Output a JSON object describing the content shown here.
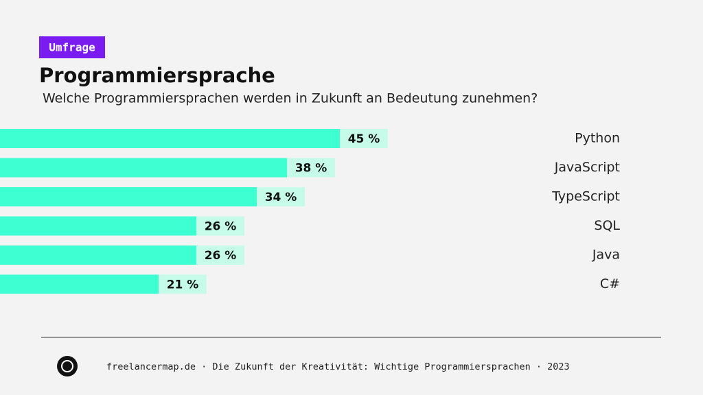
{
  "chart_data": {
    "type": "bar",
    "orientation": "horizontal",
    "tag": "Umfrage",
    "title": "Programmiersprache",
    "subtitle": "Welche Programmiersprachen werden in Zukunft an Bedeutung zunehmen?",
    "categories": [
      "Python",
      "JavaScript",
      "TypeScript",
      "SQL",
      "Java",
      "C#"
    ],
    "values": [
      45,
      38,
      34,
      26,
      26,
      21
    ],
    "value_labels": [
      "45 %",
      "38 %",
      "34 %",
      "26 %",
      "26 %",
      "21 %"
    ],
    "color": "#3dffd2",
    "source": "freelancermap.de · Die Zukunft der Kreativität: Wichtige Programmiersprachen · 2023"
  }
}
